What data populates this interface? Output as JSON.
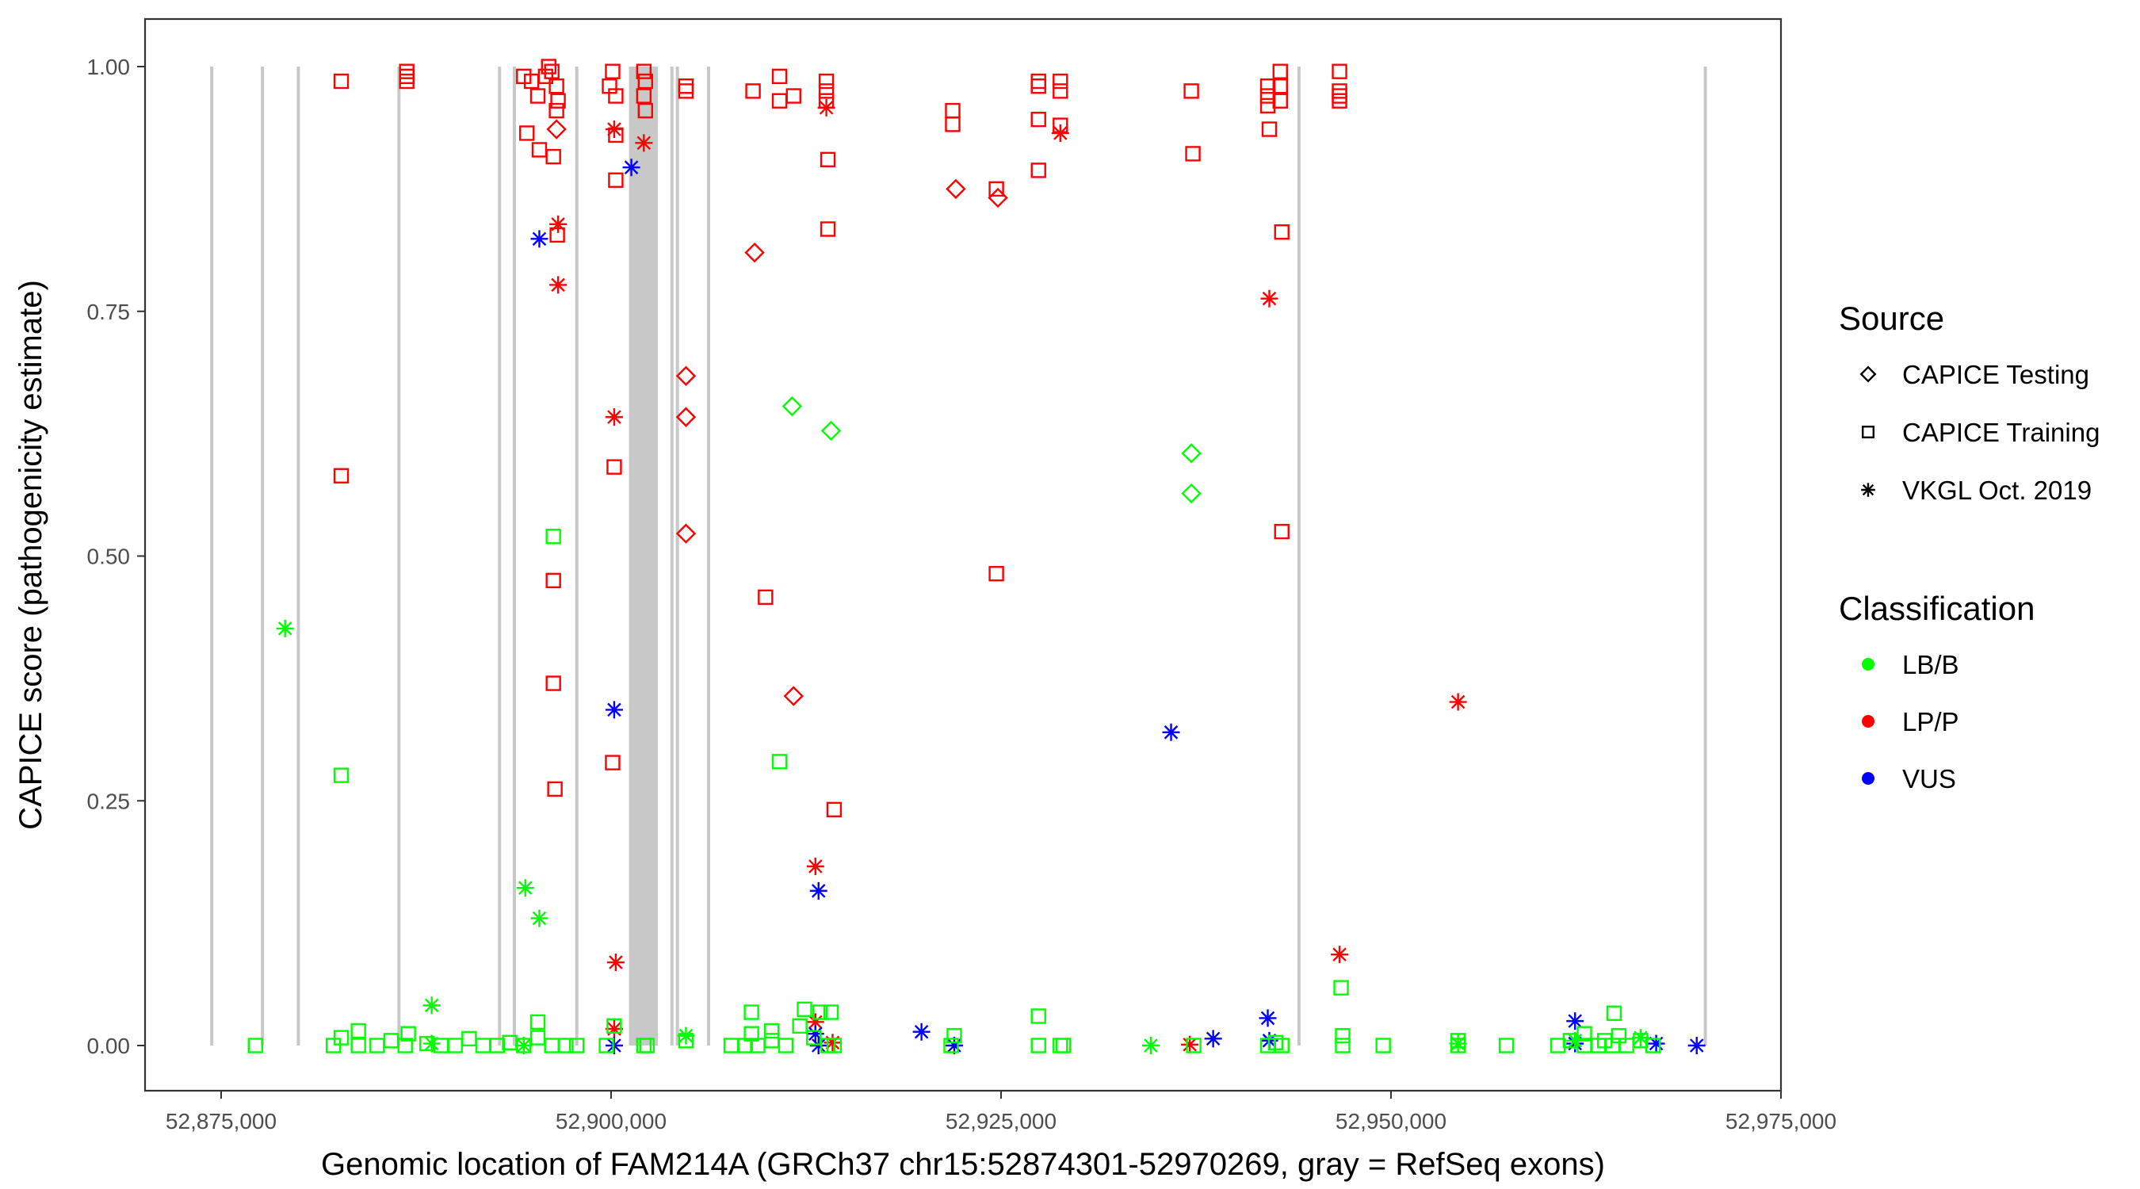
{
  "chart_data": {
    "type": "scatter",
    "xlabel": "Genomic location of FAM214A (GRCh37 chr15:52874301-52970269, gray = RefSeq exons)",
    "ylabel": "CAPICE score (pathogenicity estimate)",
    "xlim": [
      52870000,
      52975000
    ],
    "ylim": [
      -0.05,
      1.05
    ],
    "xticks": [
      52875000,
      52900000,
      52925000,
      52950000,
      52975000
    ],
    "xtick_labels": [
      "52,875,000",
      "52,900,000",
      "52,925,000",
      "52,950,000",
      "52,975,000"
    ],
    "yticks": [
      0,
      0.25,
      0.5,
      0.75,
      1.0
    ],
    "ytick_labels": [
      "0.00",
      "0.25",
      "0.50",
      "0.75",
      "1.00"
    ],
    "grid": false,
    "legend": {
      "placement": "right",
      "source_title": "Source",
      "source_items": [
        {
          "label": "CAPICE Testing",
          "shape": "diamond"
        },
        {
          "label": "CAPICE Training",
          "shape": "square"
        },
        {
          "label": "VKGL Oct. 2019",
          "shape": "asterisk"
        }
      ],
      "class_title": "Classification",
      "class_items": [
        {
          "label": "LB/B",
          "color": "#00FF00"
        },
        {
          "label": "LP/P",
          "color": "#FF0000"
        },
        {
          "label": "VUS",
          "color": "#0000FF"
        }
      ]
    },
    "exons": [
      [
        52874400,
        52874400
      ],
      [
        52877650,
        52877650
      ],
      [
        52879950,
        52879950
      ],
      [
        52886400,
        52886400
      ],
      [
        52892850,
        52892850
      ],
      [
        52893800,
        52893800
      ],
      [
        52897800,
        52897800
      ],
      [
        52901150,
        52903000
      ],
      [
        52903900,
        52903900
      ],
      [
        52904250,
        52904250
      ],
      [
        52906250,
        52906250
      ],
      [
        52944100,
        52944100
      ],
      [
        52970150,
        52970150
      ]
    ],
    "series": [
      {
        "name": "CAPICE Training LP/P",
        "shape": "square",
        "color": "#FF0000",
        "points": [
          [
            52882700,
            0.985
          ],
          [
            52882700,
            0.582
          ],
          [
            52886900,
            0.99
          ],
          [
            52886900,
            0.995
          ],
          [
            52886900,
            0.985
          ],
          [
            52894400,
            0.99
          ],
          [
            52894900,
            0.985
          ],
          [
            52895300,
            0.97
          ],
          [
            52895800,
            0.99
          ],
          [
            52896000,
            1.0
          ],
          [
            52896200,
            0.995
          ],
          [
            52896500,
            0.98
          ],
          [
            52896600,
            0.965
          ],
          [
            52894600,
            0.932
          ],
          [
            52895400,
            0.915
          ],
          [
            52896300,
            0.908
          ],
          [
            52896500,
            0.955
          ],
          [
            52896550,
            0.828
          ],
          [
            52896300,
            0.475
          ],
          [
            52896300,
            0.37
          ],
          [
            52896400,
            0.262
          ],
          [
            52899900,
            0.98
          ],
          [
            52900100,
            0.995
          ],
          [
            52900300,
            0.97
          ],
          [
            52900300,
            0.93
          ],
          [
            52900300,
            0.884
          ],
          [
            52900200,
            0.591
          ],
          [
            52900100,
            0.289
          ],
          [
            52902100,
            0.995
          ],
          [
            52902200,
            0.985
          ],
          [
            52902100,
            0.97
          ],
          [
            52902200,
            0.955
          ],
          [
            52904800,
            0.98
          ],
          [
            52904800,
            0.975
          ],
          [
            52909100,
            0.975
          ],
          [
            52910800,
            0.99
          ],
          [
            52910800,
            0.965
          ],
          [
            52911700,
            0.97
          ],
          [
            52913800,
            0.985
          ],
          [
            52913800,
            0.975
          ],
          [
            52913800,
            0.965
          ],
          [
            52913900,
            0.905
          ],
          [
            52913900,
            0.834
          ],
          [
            52909900,
            0.458
          ],
          [
            52914300,
            0.241
          ],
          [
            52921900,
            0.955
          ],
          [
            52921900,
            0.941
          ],
          [
            52924700,
            0.482
          ],
          [
            52924700,
            0.875
          ],
          [
            52927400,
            0.985
          ],
          [
            52927400,
            0.98
          ],
          [
            52927400,
            0.946
          ],
          [
            52927400,
            0.894
          ],
          [
            52928800,
            0.985
          ],
          [
            52928800,
            0.975
          ],
          [
            52928800,
            0.94
          ],
          [
            52937200,
            0.975
          ],
          [
            52937300,
            0.911
          ],
          [
            52942100,
            0.98
          ],
          [
            52942100,
            0.97
          ],
          [
            52942100,
            0.96
          ],
          [
            52942200,
            0.936
          ],
          [
            52942900,
            0.995
          ],
          [
            52942900,
            0.98
          ],
          [
            52942900,
            0.965
          ],
          [
            52943000,
            0.831
          ],
          [
            52943000,
            0.525
          ],
          [
            52946700,
            0.995
          ],
          [
            52946700,
            0.975
          ],
          [
            52946700,
            0.97
          ],
          [
            52946700,
            0.965
          ]
        ]
      },
      {
        "name": "CAPICE Testing LP/P",
        "shape": "diamond",
        "color": "#FF0000",
        "points": [
          [
            52896500,
            0.936
          ],
          [
            52909200,
            0.81
          ],
          [
            52904800,
            0.684
          ],
          [
            52904800,
            0.642
          ],
          [
            52904800,
            0.523
          ],
          [
            52911700,
            0.357
          ],
          [
            52922100,
            0.875
          ],
          [
            52924800,
            0.866
          ]
        ]
      },
      {
        "name": "VKGL LP/P",
        "shape": "asterisk",
        "color": "#FF0000",
        "points": [
          [
            52896600,
            0.839
          ],
          [
            52896600,
            0.777
          ],
          [
            52900200,
            0.936
          ],
          [
            52900200,
            0.642
          ],
          [
            52900300,
            0.085
          ],
          [
            52902100,
            0.922
          ],
          [
            52913800,
            0.958
          ],
          [
            52913100,
            0.183
          ],
          [
            52913100,
            0.024
          ],
          [
            52914200,
            0.003
          ],
          [
            52928800,
            0.932
          ],
          [
            52942200,
            0.763
          ],
          [
            52946700,
            0.093
          ],
          [
            52954300,
            0.351
          ],
          [
            52937100,
            0.001
          ],
          [
            52900200,
            0.017
          ]
        ]
      },
      {
        "name": "VKGL VUS",
        "shape": "asterisk",
        "color": "#0000FF",
        "points": [
          [
            52895400,
            0.824
          ],
          [
            52901300,
            0.897
          ],
          [
            52900200,
            0.343
          ],
          [
            52913300,
            0.158
          ],
          [
            52935900,
            0.32
          ],
          [
            52919900,
            0.014
          ],
          [
            52938600,
            0.007
          ],
          [
            52942100,
            0.028
          ],
          [
            52942200,
            0.005
          ],
          [
            52961800,
            0.025
          ],
          [
            52961800,
            0.002
          ],
          [
            52967000,
            0.002
          ],
          [
            52969600,
            0.0
          ],
          [
            52900200,
            0.0
          ],
          [
            52913300,
            0.0
          ],
          [
            52922000,
            0.0
          ],
          [
            52913100,
            0.012
          ]
        ]
      },
      {
        "name": "CAPICE Training LB/B",
        "shape": "square",
        "color": "#00FF00",
        "points": [
          [
            52896300,
            0.52
          ],
          [
            52882700,
            0.276
          ],
          [
            52910800,
            0.29
          ],
          [
            52946800,
            0.059
          ],
          [
            52927400,
            0.03
          ],
          [
            52912400,
            0.037
          ],
          [
            52909000,
            0.034
          ],
          [
            52964300,
            0.033
          ],
          [
            52913400,
            0.034
          ],
          [
            52914100,
            0.034
          ],
          [
            52877200,
            0.0
          ],
          [
            52882200,
            0.0
          ],
          [
            52882700,
            0.008
          ],
          [
            52883800,
            0.0
          ],
          [
            52883800,
            0.015
          ],
          [
            52885000,
            0.0
          ],
          [
            52885900,
            0.005
          ],
          [
            52886800,
            0.0
          ],
          [
            52887000,
            0.012
          ],
          [
            52888200,
            0.002
          ],
          [
            52889100,
            0.0
          ],
          [
            52890000,
            0.0
          ],
          [
            52890900,
            0.007
          ],
          [
            52891800,
            0.0
          ],
          [
            52892700,
            0.0
          ],
          [
            52893500,
            0.003
          ],
          [
            52894400,
            0.0
          ],
          [
            52895300,
            0.008
          ],
          [
            52895300,
            0.024
          ],
          [
            52896200,
            0.0
          ],
          [
            52897100,
            0.0
          ],
          [
            52897800,
            0.0
          ],
          [
            52899700,
            0.0
          ],
          [
            52900200,
            0.02
          ],
          [
            52902100,
            0.0
          ],
          [
            52902300,
            0.0
          ],
          [
            52904800,
            0.005
          ],
          [
            52907700,
            0.0
          ],
          [
            52908600,
            0.0
          ],
          [
            52909000,
            0.012
          ],
          [
            52909400,
            0.0
          ],
          [
            52910300,
            0.005
          ],
          [
            52910300,
            0.015
          ],
          [
            52911200,
            0.0
          ],
          [
            52912100,
            0.02
          ],
          [
            52913000,
            0.008
          ],
          [
            52913900,
            0.0
          ],
          [
            52914300,
            0.0
          ],
          [
            52921800,
            0.0
          ],
          [
            52922000,
            0.01
          ],
          [
            52927400,
            0.0
          ],
          [
            52928800,
            0.0
          ],
          [
            52929000,
            0.0
          ],
          [
            52937350,
            0.0
          ],
          [
            52942100,
            0.0
          ],
          [
            52942600,
            0.003
          ],
          [
            52943000,
            0.0
          ],
          [
            52946900,
            0.0
          ],
          [
            52946900,
            0.01
          ],
          [
            52949500,
            0.0
          ],
          [
            52954300,
            0.0
          ],
          [
            52954300,
            0.005
          ],
          [
            52957400,
            0.0
          ],
          [
            52960700,
            0.0
          ],
          [
            52961500,
            0.005
          ],
          [
            52962400,
            0.0
          ],
          [
            52962400,
            0.012
          ],
          [
            52963300,
            0.0
          ],
          [
            52963700,
            0.005
          ],
          [
            52964200,
            0.0
          ],
          [
            52964600,
            0.01
          ],
          [
            52965100,
            0.0
          ],
          [
            52966000,
            0.005
          ],
          [
            52966800,
            0.0
          ]
        ]
      },
      {
        "name": "CAPICE Testing LB/B",
        "shape": "diamond",
        "color": "#00FF00",
        "points": [
          [
            52911600,
            0.653
          ],
          [
            52914100,
            0.628
          ],
          [
            52937200,
            0.605
          ],
          [
            52937200,
            0.564
          ]
        ]
      },
      {
        "name": "VKGL LB/B",
        "shape": "asterisk",
        "color": "#00FF00",
        "points": [
          [
            52879100,
            0.426
          ],
          [
            52894500,
            0.161
          ],
          [
            52895400,
            0.13
          ],
          [
            52888500,
            0.041
          ],
          [
            52888500,
            0.002
          ],
          [
            52894400,
            0.0
          ],
          [
            52904800,
            0.01
          ],
          [
            52934600,
            0.0
          ],
          [
            52954300,
            0.002
          ],
          [
            52961800,
            0.005
          ],
          [
            52966000,
            0.008
          ]
        ]
      }
    ]
  }
}
